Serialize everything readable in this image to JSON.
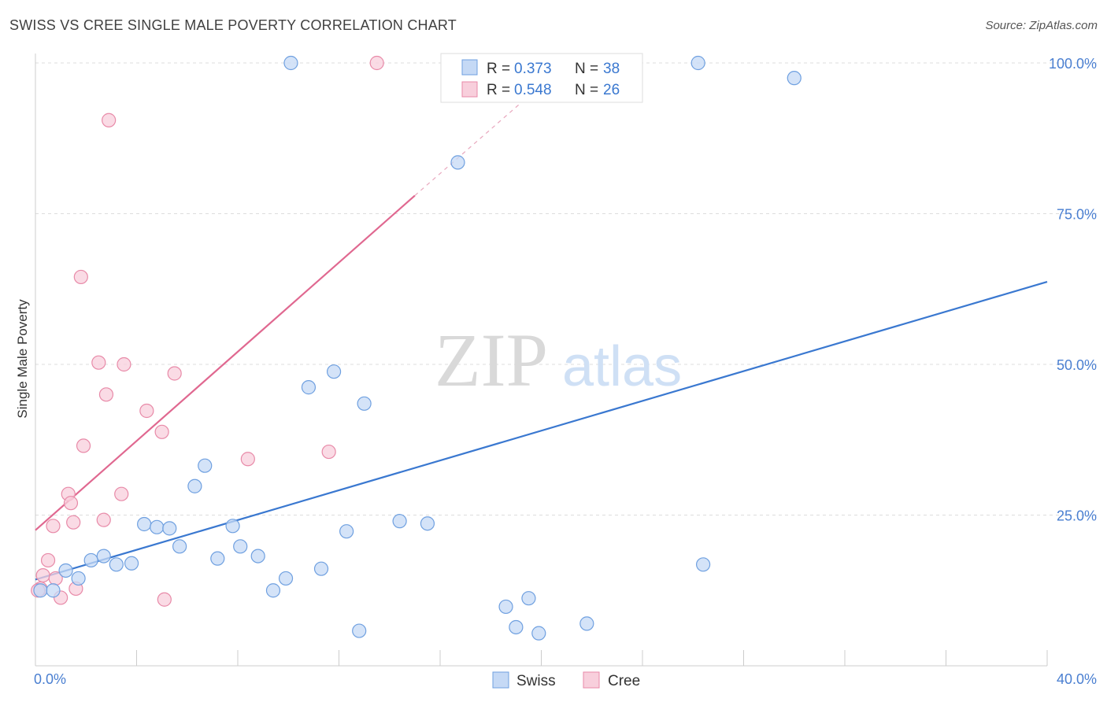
{
  "title": "SWISS VS CREE SINGLE MALE POVERTY CORRELATION CHART",
  "source": "Source: ZipAtlas.com",
  "watermark": {
    "zip": "ZIP",
    "atlas": "atlas"
  },
  "legend": {
    "swiss": {
      "r_label": "R =",
      "r_value": "0.373",
      "n_label": "N =",
      "n_value": "38"
    },
    "cree": {
      "r_label": "R =",
      "r_value": "0.548",
      "n_label": "N =",
      "n_value": "26"
    }
  },
  "colors": {
    "swiss": "#6fa0e0",
    "swiss_fill": "#c5d9f5",
    "swiss_line": "#3a78d0",
    "cree": "#e88aa8",
    "cree_fill": "#f8cfdc",
    "cree_line": "#e06890",
    "grid": "#dddddd",
    "tick_label": "#4a7fd1"
  },
  "chart_data": {
    "type": "scatter",
    "title": "SWISS VS CREE SINGLE MALE POVERTY CORRELATION CHART",
    "xlabel": "",
    "ylabel": "Single Male Poverty",
    "xlim": [
      0,
      40
    ],
    "ylim": [
      0,
      100
    ],
    "x_tick_labels": [
      "0.0%",
      "40.0%"
    ],
    "y_ticks": [
      25,
      50,
      75,
      100
    ],
    "y_tick_labels": [
      "25.0%",
      "50.0%",
      "75.0%",
      "100.0%"
    ],
    "grid": true,
    "legend_position": "top-center",
    "bottom_legend": [
      "Swiss",
      "Cree"
    ],
    "series": [
      {
        "name": "Swiss",
        "points": [
          [
            0.2,
            12.5
          ],
          [
            0.7,
            12.5
          ],
          [
            1.2,
            15.8
          ],
          [
            1.7,
            14.5
          ],
          [
            2.2,
            17.5
          ],
          [
            2.7,
            18.2
          ],
          [
            3.2,
            16.8
          ],
          [
            3.8,
            17.0
          ],
          [
            4.3,
            23.5
          ],
          [
            4.8,
            23.0
          ],
          [
            5.3,
            22.8
          ],
          [
            5.7,
            19.8
          ],
          [
            6.3,
            29.8
          ],
          [
            6.7,
            33.2
          ],
          [
            7.2,
            17.8
          ],
          [
            7.8,
            23.2
          ],
          [
            8.1,
            19.8
          ],
          [
            8.8,
            18.2
          ],
          [
            9.4,
            12.5
          ],
          [
            9.9,
            14.5
          ],
          [
            10.1,
            100.0
          ],
          [
            10.8,
            46.2
          ],
          [
            11.3,
            16.1
          ],
          [
            11.8,
            48.8
          ],
          [
            12.3,
            22.3
          ],
          [
            12.8,
            5.8
          ],
          [
            13.0,
            43.5
          ],
          [
            14.4,
            24.0
          ],
          [
            15.5,
            23.6
          ],
          [
            16.7,
            83.5
          ],
          [
            18.6,
            9.8
          ],
          [
            19.0,
            6.4
          ],
          [
            19.5,
            11.2
          ],
          [
            19.9,
            5.4
          ],
          [
            21.8,
            7.0
          ],
          [
            26.2,
            100.0
          ],
          [
            26.4,
            16.8
          ],
          [
            30.0,
            97.5
          ]
        ],
        "trend": {
          "x": [
            0,
            40
          ],
          "y": [
            14.3,
            63.7
          ]
        }
      },
      {
        "name": "Cree",
        "points": [
          [
            0.2,
            12.8
          ],
          [
            0.3,
            15.0
          ],
          [
            0.5,
            17.5
          ],
          [
            0.7,
            23.2
          ],
          [
            0.8,
            14.5
          ],
          [
            1.0,
            11.3
          ],
          [
            1.3,
            28.5
          ],
          [
            1.4,
            27.0
          ],
          [
            1.5,
            23.8
          ],
          [
            1.6,
            12.8
          ],
          [
            1.8,
            64.5
          ],
          [
            1.9,
            36.5
          ],
          [
            2.5,
            50.3
          ],
          [
            2.7,
            24.2
          ],
          [
            2.8,
            45.0
          ],
          [
            2.9,
            90.5
          ],
          [
            3.4,
            28.5
          ],
          [
            3.5,
            50.0
          ],
          [
            4.4,
            42.3
          ],
          [
            5.0,
            38.8
          ],
          [
            5.1,
            11.0
          ],
          [
            5.5,
            48.5
          ],
          [
            8.4,
            34.3
          ],
          [
            11.6,
            35.5
          ],
          [
            13.5,
            100.0
          ],
          [
            0.1,
            12.5
          ]
        ],
        "trend": {
          "x": [
            0,
            15
          ],
          "y": [
            22.5,
            78.0
          ]
        },
        "trend_dashed": {
          "x": [
            15,
            19.5
          ],
          "y": [
            78.0,
            94.5
          ]
        }
      }
    ]
  }
}
